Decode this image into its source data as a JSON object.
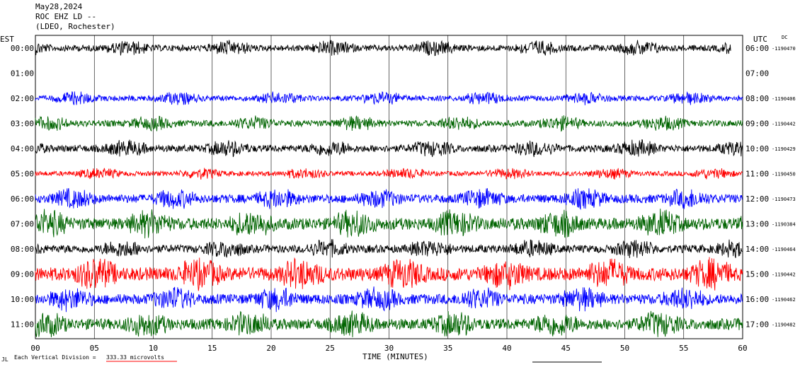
{
  "header": {
    "date": "May28,2024",
    "station": "ROC EHZ LD --",
    "network": "(LDEO, Rochester)"
  },
  "left_zone": "EST",
  "right_zone": "UTC",
  "dc_label": "DC",
  "footer": {
    "corner_mark": "JL",
    "division_text": "Each Vertical Division =",
    "division_value": "333.33 microvolts"
  },
  "colors": {
    "black": "#000000",
    "blue": "#0000ff",
    "green": "#006400",
    "red": "#ff0000",
    "grid": "#000000"
  },
  "chart_data": {
    "type": "line",
    "title": "",
    "xlabel": "TIME (MINUTES)",
    "xlim": [
      0,
      60
    ],
    "x_ticks": [
      "00",
      "05",
      "10",
      "15",
      "20",
      "25",
      "30",
      "35",
      "40",
      "45",
      "50",
      "55",
      "60"
    ],
    "rows": [
      {
        "est": "00:00",
        "utc": "06:00",
        "dc": "-1190470",
        "color": "black",
        "level": 0.8
      },
      {
        "est": "01:00",
        "utc": "07:00",
        "dc": "",
        "color": "blue",
        "level": 0
      },
      {
        "est": "02:00",
        "utc": "08:00",
        "dc": "-1190406",
        "color": "blue",
        "level": 0.7
      },
      {
        "est": "03:00",
        "utc": "09:00",
        "dc": "-1190442",
        "color": "green",
        "level": 0.8
      },
      {
        "est": "04:00",
        "utc": "10:00",
        "dc": "-1190429",
        "color": "black",
        "level": 0.9
      },
      {
        "est": "05:00",
        "utc": "11:00",
        "dc": "-1190450",
        "color": "red",
        "level": 0.6
      },
      {
        "est": "06:00",
        "utc": "12:00",
        "dc": "-1190473",
        "color": "blue",
        "level": 1.1
      },
      {
        "est": "07:00",
        "utc": "13:00",
        "dc": "-1190384",
        "color": "green",
        "level": 1.5
      },
      {
        "est": "08:00",
        "utc": "14:00",
        "dc": "-1190464",
        "color": "black",
        "level": 1.0
      },
      {
        "est": "09:00",
        "utc": "15:00",
        "dc": "-1190442",
        "color": "red",
        "level": 1.7
      },
      {
        "est": "10:00",
        "utc": "16:00",
        "dc": "-1190462",
        "color": "blue",
        "level": 1.3
      },
      {
        "est": "11:00",
        "utc": "17:00",
        "dc": "-1190482",
        "color": "green",
        "level": 1.4
      }
    ]
  }
}
